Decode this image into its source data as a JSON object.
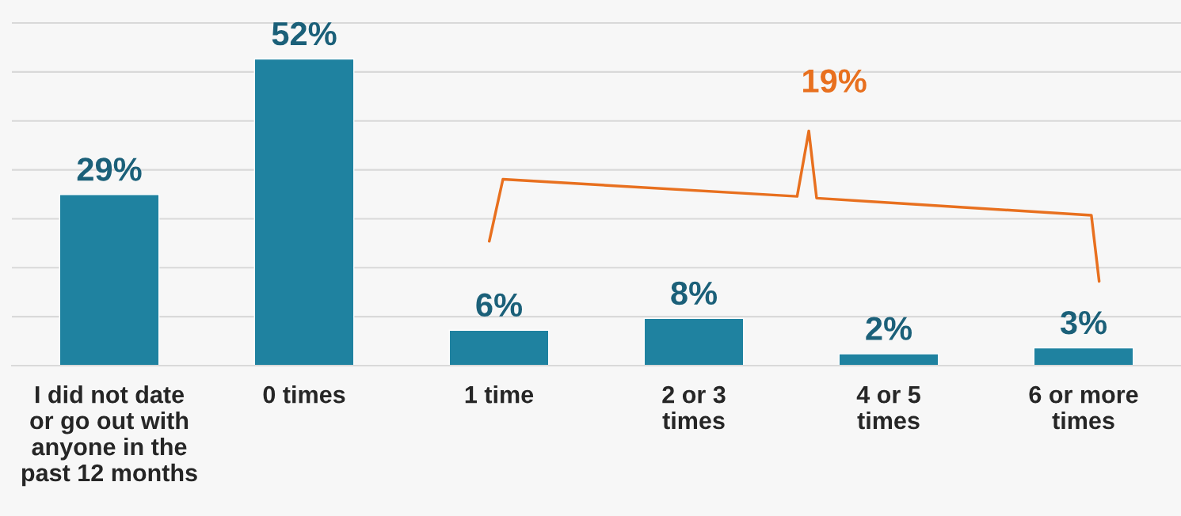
{
  "chart_data": {
    "type": "bar",
    "categories": [
      "I did not date\nor go out with\nanyone in the\npast 12 months",
      "0 times",
      "1 time",
      "2 or 3\ntimes",
      "4 or 5\ntimes",
      "6 or more\ntimes"
    ],
    "values": [
      29,
      52,
      6,
      8,
      2,
      3
    ],
    "value_labels": [
      "29%",
      "52%",
      "6%",
      "8%",
      "2%",
      "3%"
    ],
    "color": "#1f82a0",
    "ylim": [
      0,
      62
    ],
    "yticks": [
      {
        "value": 0,
        "label": null
      },
      {
        "value": 8.3,
        "label": null
      },
      {
        "value": 16.6,
        "label": null
      },
      {
        "value": 24.9,
        "label": null
      },
      {
        "value": 33.2,
        "label": null
      },
      {
        "value": 41.5,
        "label": null
      },
      {
        "value": 49.8,
        "label": null
      },
      {
        "value": 58.1,
        "label": null
      }
    ],
    "grid": "y",
    "tick_labels": "x",
    "annotations": [
      "19%"
    ]
  }
}
